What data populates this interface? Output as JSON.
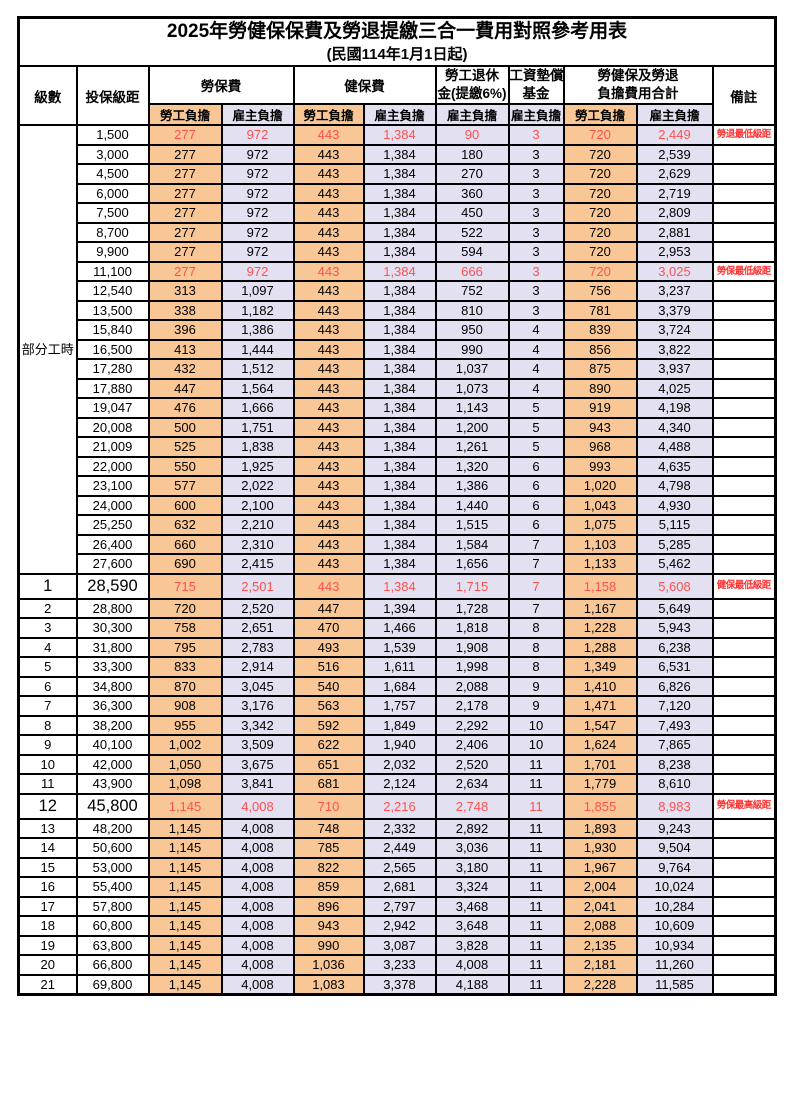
{
  "title": "2025年勞健保保費及勞退提繳三合一費用對照參考用表",
  "subtitle": "(民國114年1月1日起)",
  "colors": {
    "employee_column_fill": "#F9C795",
    "employer_column_fill": "#E2E0F1",
    "highlight_value_text": "#FF5050",
    "note_text": "#FF3232",
    "border": "#000000"
  },
  "header": {
    "level": "級數",
    "bracket": "投保級距",
    "labor_insurance": "勞保費",
    "health_insurance": "健保費",
    "pension_line1": "勞工退休",
    "pension_line2": "金(提繳6%)",
    "wage_fund_line1": "工資墊償",
    "wage_fund_line2": "基金",
    "total_line1": "勞健保及勞退",
    "total_line2": "負擔費用合計",
    "remarks": "備註",
    "employee_share": "勞工負擔",
    "employer_share": "雇主負擔"
  },
  "part_time_label": "部分工時",
  "part_time_rowspan": 23,
  "column_fill_pattern": [
    "emp",
    "er",
    "emp",
    "er",
    "er",
    "er",
    "emp",
    "er"
  ],
  "rows": [
    {
      "bracket": "1,500",
      "v": [
        "277",
        "972",
        "443",
        "1,384",
        "90",
        "3",
        "720",
        "2,449"
      ],
      "note": "勞退最低級距",
      "red": true
    },
    {
      "bracket": "3,000",
      "v": [
        "277",
        "972",
        "443",
        "1,384",
        "180",
        "3",
        "720",
        "2,539"
      ],
      "note": ""
    },
    {
      "bracket": "4,500",
      "v": [
        "277",
        "972",
        "443",
        "1,384",
        "270",
        "3",
        "720",
        "2,629"
      ],
      "note": ""
    },
    {
      "bracket": "6,000",
      "v": [
        "277",
        "972",
        "443",
        "1,384",
        "360",
        "3",
        "720",
        "2,719"
      ],
      "note": ""
    },
    {
      "bracket": "7,500",
      "v": [
        "277",
        "972",
        "443",
        "1,384",
        "450",
        "3",
        "720",
        "2,809"
      ],
      "note": ""
    },
    {
      "bracket": "8,700",
      "v": [
        "277",
        "972",
        "443",
        "1,384",
        "522",
        "3",
        "720",
        "2,881"
      ],
      "note": ""
    },
    {
      "bracket": "9,900",
      "v": [
        "277",
        "972",
        "443",
        "1,384",
        "594",
        "3",
        "720",
        "2,953"
      ],
      "note": ""
    },
    {
      "bracket": "11,100",
      "v": [
        "277",
        "972",
        "443",
        "1,384",
        "666",
        "3",
        "720",
        "3,025"
      ],
      "note": "勞保最低級距",
      "red": true
    },
    {
      "bracket": "12,540",
      "v": [
        "313",
        "1,097",
        "443",
        "1,384",
        "752",
        "3",
        "756",
        "3,237"
      ],
      "note": ""
    },
    {
      "bracket": "13,500",
      "v": [
        "338",
        "1,182",
        "443",
        "1,384",
        "810",
        "3",
        "781",
        "3,379"
      ],
      "note": ""
    },
    {
      "bracket": "15,840",
      "v": [
        "396",
        "1,386",
        "443",
        "1,384",
        "950",
        "4",
        "839",
        "3,724"
      ],
      "note": ""
    },
    {
      "bracket": "16,500",
      "v": [
        "413",
        "1,444",
        "443",
        "1,384",
        "990",
        "4",
        "856",
        "3,822"
      ],
      "note": ""
    },
    {
      "bracket": "17,280",
      "v": [
        "432",
        "1,512",
        "443",
        "1,384",
        "1,037",
        "4",
        "875",
        "3,937"
      ],
      "note": ""
    },
    {
      "bracket": "17,880",
      "v": [
        "447",
        "1,564",
        "443",
        "1,384",
        "1,073",
        "4",
        "890",
        "4,025"
      ],
      "note": ""
    },
    {
      "bracket": "19,047",
      "v": [
        "476",
        "1,666",
        "443",
        "1,384",
        "1,143",
        "5",
        "919",
        "4,198"
      ],
      "note": ""
    },
    {
      "bracket": "20,008",
      "v": [
        "500",
        "1,751",
        "443",
        "1,384",
        "1,200",
        "5",
        "943",
        "4,340"
      ],
      "note": ""
    },
    {
      "bracket": "21,009",
      "v": [
        "525",
        "1,838",
        "443",
        "1,384",
        "1,261",
        "5",
        "968",
        "4,488"
      ],
      "note": ""
    },
    {
      "bracket": "22,000",
      "v": [
        "550",
        "1,925",
        "443",
        "1,384",
        "1,320",
        "6",
        "993",
        "4,635"
      ],
      "note": ""
    },
    {
      "bracket": "23,100",
      "v": [
        "577",
        "2,022",
        "443",
        "1,384",
        "1,386",
        "6",
        "1,020",
        "4,798"
      ],
      "note": ""
    },
    {
      "bracket": "24,000",
      "v": [
        "600",
        "2,100",
        "443",
        "1,384",
        "1,440",
        "6",
        "1,043",
        "4,930"
      ],
      "note": ""
    },
    {
      "bracket": "25,250",
      "v": [
        "632",
        "2,210",
        "443",
        "1,384",
        "1,515",
        "6",
        "1,075",
        "5,115"
      ],
      "note": ""
    },
    {
      "bracket": "26,400",
      "v": [
        "660",
        "2,310",
        "443",
        "1,384",
        "1,584",
        "7",
        "1,103",
        "5,285"
      ],
      "note": ""
    },
    {
      "bracket": "27,600",
      "v": [
        "690",
        "2,415",
        "443",
        "1,384",
        "1,656",
        "7",
        "1,133",
        "5,462"
      ],
      "note": ""
    },
    {
      "level": "1",
      "bracket": "28,590",
      "v": [
        "715",
        "2,501",
        "443",
        "1,384",
        "1,715",
        "7",
        "1,158",
        "5,608"
      ],
      "note": "健保最低級距",
      "red": true,
      "big": true
    },
    {
      "level": "2",
      "bracket": "28,800",
      "v": [
        "720",
        "2,520",
        "447",
        "1,394",
        "1,728",
        "7",
        "1,167",
        "5,649"
      ],
      "note": ""
    },
    {
      "level": "3",
      "bracket": "30,300",
      "v": [
        "758",
        "2,651",
        "470",
        "1,466",
        "1,818",
        "8",
        "1,228",
        "5,943"
      ],
      "note": ""
    },
    {
      "level": "4",
      "bracket": "31,800",
      "v": [
        "795",
        "2,783",
        "493",
        "1,539",
        "1,908",
        "8",
        "1,288",
        "6,238"
      ],
      "note": ""
    },
    {
      "level": "5",
      "bracket": "33,300",
      "v": [
        "833",
        "2,914",
        "516",
        "1,611",
        "1,998",
        "8",
        "1,349",
        "6,531"
      ],
      "note": ""
    },
    {
      "level": "6",
      "bracket": "34,800",
      "v": [
        "870",
        "3,045",
        "540",
        "1,684",
        "2,088",
        "9",
        "1,410",
        "6,826"
      ],
      "note": ""
    },
    {
      "level": "7",
      "bracket": "36,300",
      "v": [
        "908",
        "3,176",
        "563",
        "1,757",
        "2,178",
        "9",
        "1,471",
        "7,120"
      ],
      "note": ""
    },
    {
      "level": "8",
      "bracket": "38,200",
      "v": [
        "955",
        "3,342",
        "592",
        "1,849",
        "2,292",
        "10",
        "1,547",
        "7,493"
      ],
      "note": ""
    },
    {
      "level": "9",
      "bracket": "40,100",
      "v": [
        "1,002",
        "3,509",
        "622",
        "1,940",
        "2,406",
        "10",
        "1,624",
        "7,865"
      ],
      "note": ""
    },
    {
      "level": "10",
      "bracket": "42,000",
      "v": [
        "1,050",
        "3,675",
        "651",
        "2,032",
        "2,520",
        "11",
        "1,701",
        "8,238"
      ],
      "note": ""
    },
    {
      "level": "11",
      "bracket": "43,900",
      "v": [
        "1,098",
        "3,841",
        "681",
        "2,124",
        "2,634",
        "11",
        "1,779",
        "8,610"
      ],
      "note": ""
    },
    {
      "level": "12",
      "bracket": "45,800",
      "v": [
        "1,145",
        "4,008",
        "710",
        "2,216",
        "2,748",
        "11",
        "1,855",
        "8,983"
      ],
      "note": "勞保最高級距",
      "red": true,
      "big": true
    },
    {
      "level": "13",
      "bracket": "48,200",
      "v": [
        "1,145",
        "4,008",
        "748",
        "2,332",
        "2,892",
        "11",
        "1,893",
        "9,243"
      ],
      "note": ""
    },
    {
      "level": "14",
      "bracket": "50,600",
      "v": [
        "1,145",
        "4,008",
        "785",
        "2,449",
        "3,036",
        "11",
        "1,930",
        "9,504"
      ],
      "note": ""
    },
    {
      "level": "15",
      "bracket": "53,000",
      "v": [
        "1,145",
        "4,008",
        "822",
        "2,565",
        "3,180",
        "11",
        "1,967",
        "9,764"
      ],
      "note": ""
    },
    {
      "level": "16",
      "bracket": "55,400",
      "v": [
        "1,145",
        "4,008",
        "859",
        "2,681",
        "3,324",
        "11",
        "2,004",
        "10,024"
      ],
      "note": ""
    },
    {
      "level": "17",
      "bracket": "57,800",
      "v": [
        "1,145",
        "4,008",
        "896",
        "2,797",
        "3,468",
        "11",
        "2,041",
        "10,284"
      ],
      "note": ""
    },
    {
      "level": "18",
      "bracket": "60,800",
      "v": [
        "1,145",
        "4,008",
        "943",
        "2,942",
        "3,648",
        "11",
        "2,088",
        "10,609"
      ],
      "note": ""
    },
    {
      "level": "19",
      "bracket": "63,800",
      "v": [
        "1,145",
        "4,008",
        "990",
        "3,087",
        "3,828",
        "11",
        "2,135",
        "10,934"
      ],
      "note": ""
    },
    {
      "level": "20",
      "bracket": "66,800",
      "v": [
        "1,145",
        "4,008",
        "1,036",
        "3,233",
        "4,008",
        "11",
        "2,181",
        "11,260"
      ],
      "note": ""
    },
    {
      "level": "21",
      "bracket": "69,800",
      "v": [
        "1,145",
        "4,008",
        "1,083",
        "3,378",
        "4,188",
        "11",
        "2,228",
        "11,585"
      ],
      "note": ""
    }
  ]
}
